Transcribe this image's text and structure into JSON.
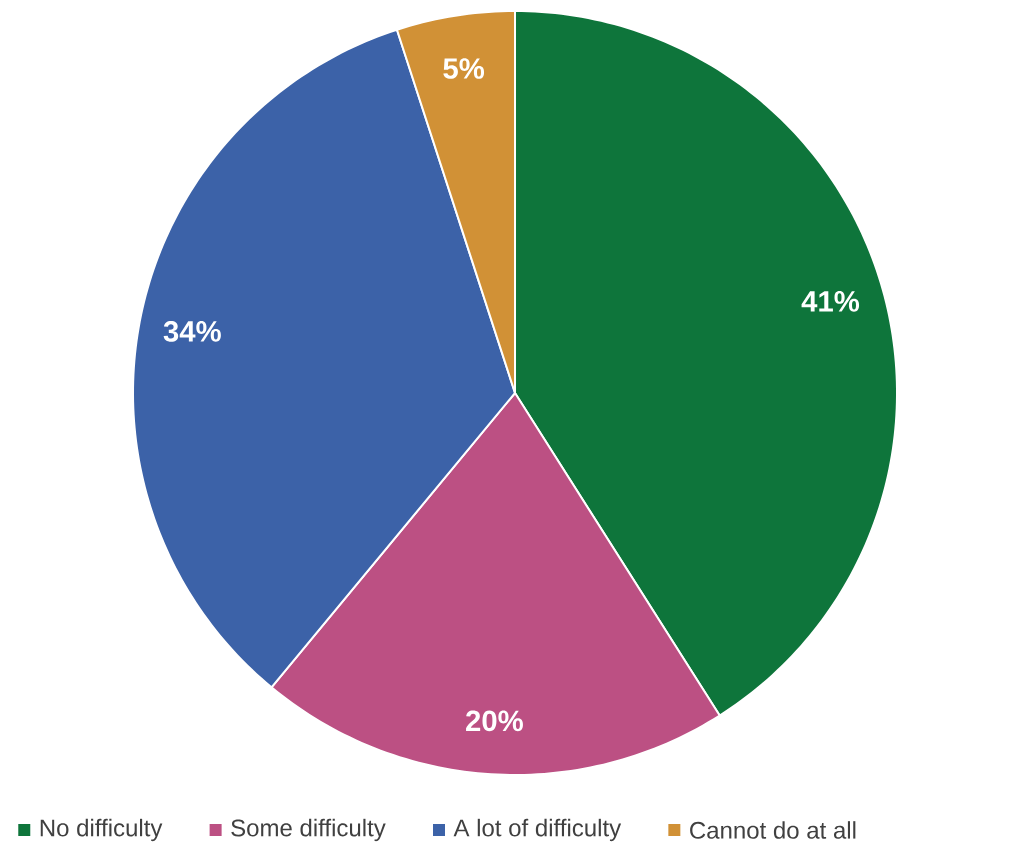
{
  "chart_data": {
    "type": "pie",
    "categories": [
      "No difficulty",
      "Some difficulty",
      "A lot of difficulty",
      "Cannot do at all"
    ],
    "values": [
      41,
      20,
      34,
      5
    ],
    "colors": [
      "#0e753b",
      "#bc5083",
      "#3c62a8",
      "#d19136"
    ],
    "value_labels": [
      "41%",
      "20%",
      "34%",
      "5%"
    ],
    "legend": "bottom"
  }
}
